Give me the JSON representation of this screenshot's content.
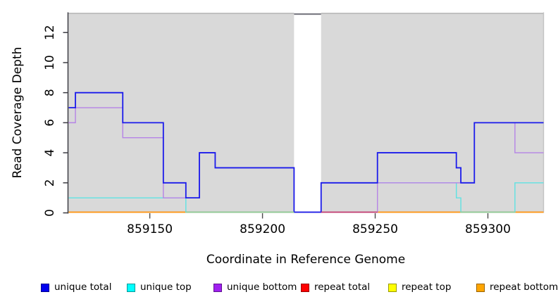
{
  "chart_data": {
    "type": "step-line",
    "title": "",
    "xlabel": "Coordinate in Reference Genome",
    "ylabel": "Read Coverage Depth",
    "xlim": [
      859113.7,
      859324.7
    ],
    "ylim": [
      0,
      13.3
    ],
    "xticks": [
      859150,
      859200,
      859250,
      859300
    ],
    "yticks": [
      0,
      2,
      4,
      6,
      8,
      10,
      12
    ],
    "grid": false,
    "plot_background": "#d9d9d9",
    "gap_region": {
      "from": 859214,
      "to": 859226,
      "note": "white vertical band, coverage drops to 0"
    },
    "legend_position": "bottom",
    "series": [
      {
        "name": "unique total",
        "legend_color": "#0000ee",
        "line_color": "#1b1beb",
        "line_width": 1.8,
        "steps": [
          [
            859114,
            7
          ],
          [
            859117,
            8
          ],
          [
            859138,
            6
          ],
          [
            859156,
            2
          ],
          [
            859166,
            1
          ],
          [
            859172,
            4
          ],
          [
            859179,
            3
          ],
          [
            859214,
            0
          ],
          [
            859226,
            2
          ],
          [
            859251,
            4
          ],
          [
            859286,
            3
          ],
          [
            859288,
            2
          ],
          [
            859294,
            6
          ],
          [
            859325,
            6
          ]
        ]
      },
      {
        "name": "unique top",
        "legend_color": "#00ffff",
        "line_color": "#5fe2e2",
        "line_width": 1.4,
        "steps": [
          [
            859114,
            1
          ],
          [
            859166,
            0
          ],
          [
            859226,
            2
          ],
          [
            859286,
            1
          ],
          [
            859288,
            0
          ],
          [
            859312,
            2
          ],
          [
            859325,
            2
          ]
        ]
      },
      {
        "name": "unique bottom",
        "legend_color": "#a020f0",
        "line_color": "#b583e6",
        "line_width": 1.4,
        "steps": [
          [
            859114,
            6
          ],
          [
            859117,
            7
          ],
          [
            859138,
            5
          ],
          [
            859156,
            1
          ],
          [
            859172,
            4
          ],
          [
            859179,
            3
          ],
          [
            859214,
            0
          ],
          [
            859251,
            2
          ],
          [
            859294,
            6
          ],
          [
            859312,
            4
          ],
          [
            859325,
            4
          ]
        ]
      },
      {
        "name": "repeat total",
        "legend_color": "#ff0000",
        "line_color": "#e03131",
        "line_width": 1.4,
        "steps": [
          [
            859114,
            0
          ],
          [
            859325,
            0
          ]
        ]
      },
      {
        "name": "repeat top",
        "legend_color": "#ffff00",
        "line_color": "#f0f000",
        "line_width": 1.4,
        "steps": [
          [
            859114,
            0
          ],
          [
            859325,
            0
          ]
        ]
      },
      {
        "name": "repeat bottom",
        "legend_color": "#ffa500",
        "line_color": "#ff9b1a",
        "line_width": 1.8,
        "segments": [
          {
            "from": 859114,
            "to": 859166,
            "value": 0
          },
          {
            "from": 859251,
            "to": 859288,
            "value": 0
          },
          {
            "from": 859312,
            "to": 859325,
            "value": 0
          }
        ]
      }
    ],
    "overlay_segments": [
      {
        "label": "unique top over repeat top (green blend)",
        "color": "#8fce96",
        "value": 0,
        "from": 859166,
        "to": 859214
      },
      {
        "label": "repeat total over unique bottom (crimson blend)",
        "color": "#c13a72",
        "value": 0,
        "from": 859226,
        "to": 859251
      },
      {
        "label": "unique top over repeat top (green blend)",
        "color": "#8fce96",
        "value": 0,
        "from": 859288,
        "to": 859312
      }
    ],
    "draw_order": [
      "repeat top",
      "repeat total",
      "repeat bottom",
      "unique top",
      "unique bottom",
      "unique total"
    ]
  },
  "frame": {
    "top_border_color": "#b2b2b2",
    "gap_top_border_color": "#7e7e86",
    "left_axis_color": "#3d3d44",
    "right_border_color": "#c2c2c2",
    "tick_color": "#4a4a4a",
    "label_color": "#000000"
  }
}
